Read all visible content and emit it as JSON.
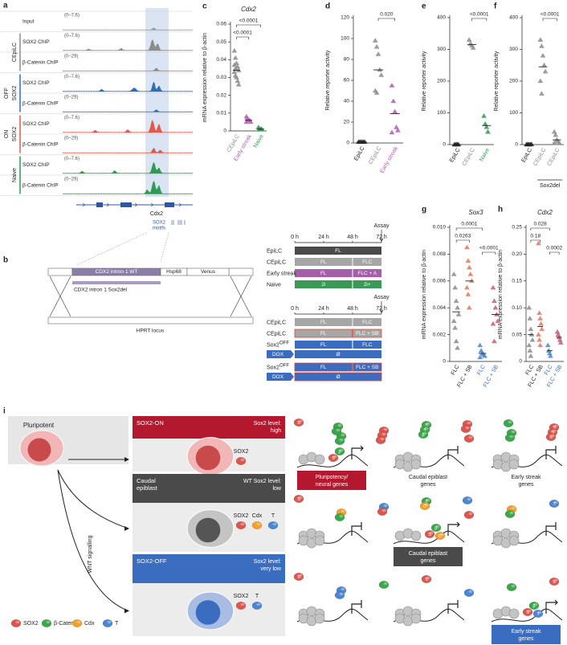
{
  "browser": {
    "panel": "a",
    "input": {
      "label": "Input",
      "range": "(0–7.6)"
    },
    "groups": [
      {
        "lines": [
          "CEpiLC"
        ],
        "color": "#8c8c8c",
        "tracks": [
          {
            "label": "SOX2 ChIP",
            "range": "(0–7.6)"
          },
          {
            "label": "β-Catenin ChIP",
            "range": "(0–29)"
          }
        ]
      },
      {
        "lines": [
          "OFF",
          "SOX2"
        ],
        "color": "#2f6db5",
        "tracks": [
          {
            "label": "SOX2 ChIP",
            "range": "(0–7.6)"
          },
          {
            "label": "β-Catenin ChIP",
            "range": "(0–29)"
          }
        ]
      },
      {
        "lines": [
          "ON",
          "SOX2"
        ],
        "color": "#e2584a",
        "tracks": [
          {
            "label": "SOX2 ChIP",
            "range": "(0–7.6)"
          },
          {
            "label": "β-Catenin ChIP",
            "range": "(0–29)"
          }
        ]
      },
      {
        "lines": [
          "Naive"
        ],
        "color": "#2e9a52",
        "tracks": [
          {
            "label": "SOX2 ChIP",
            "range": "(0–7.6)"
          },
          {
            "label": "β-Catenin ChIP",
            "range": "(0–29)"
          }
        ]
      }
    ],
    "gene": "Cdx2",
    "motifs": [
      "SOX2",
      "motifs"
    ]
  },
  "construct": {
    "panel": "b",
    "wt": "CDX2 intron 1 WT",
    "promoter": "Hsp68",
    "reporter": "Venus",
    "del": "CDX2 intron 1 Sox2del",
    "locus": "HPRT locus"
  },
  "chart_data": [
    {
      "type": "strip",
      "panel": "c",
      "title": "Cdx2",
      "y_label": "mRNA expression relative to β-actin",
      "categories": [
        "CEpiLC",
        "Early streak",
        "Naive"
      ],
      "colors": [
        "#8c8c8c",
        "#b05fb0",
        "#2e9a52"
      ],
      "label_colors": [
        "#8c8c8c",
        "#b05fb0",
        "#2e9a52"
      ],
      "values": [
        [
          0.045,
          0.041,
          0.038,
          0.036,
          0.034,
          0.033,
          0.031,
          0.03,
          0.028,
          0.026,
          0.037,
          0.035
        ],
        [
          0.008,
          0.007,
          0.006,
          0.006,
          0.005,
          0.005
        ],
        [
          0.002,
          0.001,
          0.001,
          0.001
        ]
      ],
      "means": [
        0.034,
        0.006,
        0.001
      ],
      "ylim": [
        0,
        0.06
      ],
      "yticks": [
        0,
        0.01,
        0.02,
        0.03,
        0.04,
        0.05,
        0.06
      ],
      "comparisons": [
        {
          "groups": [
            0,
            2
          ],
          "label": "<0.0001"
        },
        {
          "groups": [
            0,
            1
          ],
          "label": "<0.0001"
        }
      ]
    },
    {
      "type": "strip",
      "panel": "d",
      "y_label": "Relative reporter activity",
      "categories": [
        "EpiLC",
        "CEpiLC",
        "Early streak"
      ],
      "colors": [
        "#222222",
        "#8c8c8c",
        "#b05fb0"
      ],
      "label_colors": [
        "#222222",
        "#8c8c8c",
        "#b05fb0"
      ],
      "values": [
        [
          1,
          1,
          1,
          1,
          1
        ],
        [
          98,
          92,
          85,
          70,
          65,
          50,
          48
        ],
        [
          55,
          40,
          30,
          15,
          12,
          10
        ]
      ],
      "means": [
        1,
        70,
        28
      ],
      "ylim": [
        0,
        120
      ],
      "yticks": [
        0,
        20,
        40,
        60,
        80,
        100,
        120
      ],
      "comparisons": [
        {
          "groups": [
            1,
            2
          ],
          "label": "0.020"
        }
      ]
    },
    {
      "type": "strip",
      "panel": "e",
      "y_label": "Relative reporter activity",
      "categories": [
        "EpiLC",
        "CEpiLC",
        "Naive"
      ],
      "colors": [
        "#222222",
        "#8c8c8c",
        "#2e9a52"
      ],
      "label_colors": [
        "#222222",
        "#8c8c8c",
        "#2e9a52"
      ],
      "values": [
        [
          0,
          0,
          1,
          0
        ],
        [
          330,
          318,
          312,
          305
        ],
        [
          90,
          65,
          55,
          40
        ]
      ],
      "means": [
        0,
        315,
        60
      ],
      "ylim": [
        0,
        400
      ],
      "yticks": [
        0,
        100,
        200,
        300,
        400
      ],
      "comparisons": [
        {
          "groups": [
            1,
            2
          ],
          "label": "<0.0001"
        }
      ]
    },
    {
      "type": "strip",
      "panel": "f",
      "y_label": "Relative reporter activity",
      "categories": [
        "EpiLC",
        "CEpiLC",
        "CEpiLC"
      ],
      "colors": [
        "#222222",
        "#8c8c8c",
        "#8c8c8c"
      ],
      "label_colors": [
        "#222222",
        "#8c8c8c",
        "#8c8c8c"
      ],
      "values": [
        [
          0,
          1,
          0,
          0,
          1
        ],
        [
          330,
          310,
          280,
          250,
          230,
          200,
          160
        ],
        [
          40,
          30,
          15,
          10,
          5,
          5
        ]
      ],
      "means": [
        0,
        245,
        15
      ],
      "ylim": [
        0,
        400
      ],
      "yticks": [
        0,
        100,
        200,
        300,
        400
      ],
      "comparisons": [
        {
          "groups": [
            1,
            2
          ],
          "label": "<0.0001"
        }
      ],
      "x_group": {
        "label": "Sox2del",
        "categories": [
          1,
          2
        ]
      }
    },
    {
      "type": "strip",
      "panel": "g",
      "title": "Sox3",
      "y_label": "mRNA expression relative to β-actin",
      "categories": [
        "FLC",
        "FLC + SB",
        "FLC",
        "FLC + SB"
      ],
      "colors": [
        "#8c8c8c",
        "#e07a5f",
        "#4d86d0",
        "#c0607a"
      ],
      "label_colors": [
        "#222222",
        "#222222",
        "#3a6cc0",
        "#3a6cc0"
      ],
      "values": [
        [
          0.0065,
          0.0055,
          0.0045,
          0.004,
          0.0035,
          0.003,
          0.0025,
          0.0015,
          0.001
        ],
        [
          0.0085,
          0.0075,
          0.007,
          0.0065,
          0.006,
          0.0055,
          0.005,
          0.004
        ],
        [
          0.0012,
          0.0008,
          0.0006,
          0.0005,
          0.0004,
          0.0003
        ],
        [
          0.0055,
          0.0045,
          0.004,
          0.0035,
          0.003,
          0.0028,
          0.0015
        ]
      ],
      "means": [
        0.0037,
        0.006,
        0.0006,
        0.0035
      ],
      "ylim": [
        0,
        0.01
      ],
      "yticks": [
        0,
        0.002,
        0.004,
        0.006,
        0.008,
        {
          "value": 0.01,
          "label": "0.010"
        }
      ],
      "comparisons": [
        {
          "groups": [
            0,
            2
          ],
          "label": "0.0001"
        },
        {
          "groups": [
            0,
            1
          ],
          "label": "0.0263"
        },
        {
          "groups": [
            2,
            3
          ],
          "label": "<0.0001"
        }
      ]
    },
    {
      "type": "strip",
      "panel": "h",
      "title": "Cdx2",
      "y_label": "mRNA expression relative to β-actin",
      "categories": [
        "FLC",
        "FLC + SB",
        "FLC",
        "FLC + SB"
      ],
      "colors": [
        "#8c8c8c",
        "#e07a5f",
        "#4d86d0",
        "#c0607a"
      ],
      "label_colors": [
        "#222222",
        "#222222",
        "#3a6cc0",
        "#3a6cc0"
      ],
      "values": [
        [
          0.1,
          0.08,
          0.06,
          0.05,
          0.04,
          0.03,
          0.02,
          0.01
        ],
        [
          0.22,
          0.09,
          0.08,
          0.07,
          0.06,
          0.05,
          0.04,
          0.03
        ],
        [
          0.03,
          0.02,
          0.015,
          0.01
        ],
        [
          0.055,
          0.05,
          0.045,
          0.04,
          0.035
        ]
      ],
      "means": [
        0.05,
        0.065,
        0.02,
        0.045
      ],
      "ylim": [
        0,
        0.25
      ],
      "yticks": [
        0,
        0.05,
        {
          "value": 0.1,
          "label": "0.10"
        },
        0.15,
        {
          "value": 0.2,
          "label": "0.20"
        },
        0.25
      ],
      "comparisons": [
        {
          "groups": [
            0,
            2
          ],
          "label": "0.028"
        },
        {
          "groups": [
            0,
            1
          ],
          "label": "0.18"
        },
        {
          "groups": [
            2,
            3
          ],
          "label": "0.0002"
        }
      ]
    }
  ],
  "timelines": [
    {
      "assay": "Assay",
      "times": [
        "0 h",
        "24 h",
        "48 h",
        "72 h"
      ],
      "rows": [
        {
          "label": "EpiLC",
          "segments": [
            "FL"
          ],
          "color": "#4a4a4a"
        },
        {
          "label": "CEpiLC",
          "segments": [
            "FL",
            "FLC"
          ],
          "color": "#a6a6a6"
        },
        {
          "label": "Early streak",
          "segments": [
            "FL",
            "FLC + A"
          ],
          "color": "#a45fa8"
        },
        {
          "label": "Naive",
          "segments": [
            "2i",
            "2i+"
          ],
          "color": "#3a9a55"
        }
      ]
    },
    {
      "assay": "Assay",
      "times": [
        "0 h",
        "24 h",
        "48 h",
        "72 h"
      ],
      "rows": [
        {
          "label": "CEpiLC",
          "segments": [
            "FL",
            "FLC"
          ],
          "color": "#a6a6a6"
        },
        {
          "label": "CEpiLC",
          "segments": [
            "FL",
            "FLC + SB"
          ],
          "color": "#a6a6a6",
          "outline": "#e0453a"
        },
        {
          "label": "Sox2",
          "tag": "OFF",
          "drug": "DOX",
          "segments": [
            "FL",
            "FLC"
          ],
          "sub": "Ø",
          "color": "#3a6cc0"
        },
        {
          "label": "Sox2",
          "tag": "OFF",
          "drug": "DOX",
          "segments": [
            "FL",
            "FLC + SB"
          ],
          "sub": "Ø",
          "color": "#3a6cc0",
          "outline": "#e0453a"
        }
      ]
    }
  ],
  "model": {
    "panel": "i",
    "start": "Pluripotent",
    "wnt": "WNT signalling",
    "states": [
      {
        "name": [
          "SOX2-ON"
        ],
        "level": [
          "Sox2 level:",
          "high"
        ],
        "color": "#b3182f",
        "cell": [
          "#f2b6b6",
          "#c94a4a"
        ],
        "factors": [
          "SOX2"
        ]
      },
      {
        "name": [
          "Caudal",
          "epiblast"
        ],
        "level": [
          "WT Sox2 level:",
          "low"
        ],
        "color": "#4a4a4a",
        "cell": [
          "#c4c4c4",
          "#555555"
        ],
        "factors": [
          "SOX2",
          "Cdx",
          "T"
        ]
      },
      {
        "name": [
          "SOX2-OFF"
        ],
        "level": [
          "Sox2 level:",
          "very low"
        ],
        "color": "#3a6cc0",
        "cell": [
          "#a9bde3",
          "#3a6cc0"
        ],
        "factors": [
          "SOX2",
          "T"
        ]
      }
    ],
    "legend": [
      {
        "name": "SOX2",
        "glyph": "S",
        "color": "#d9574f"
      },
      {
        "name": "β-Catenin",
        "glyph": "β",
        "color": "#3da64b"
      },
      {
        "name": "Cdx",
        "glyph": "C",
        "color": "#f0a02c"
      },
      {
        "name": "T",
        "glyph": "T",
        "color": "#4d86d0"
      }
    ],
    "genes": [
      [
        "Pluripotency/",
        "neural genes"
      ],
      [
        "Caudal epiblast",
        "genes"
      ],
      [
        "Early streak",
        "genes"
      ]
    ]
  }
}
